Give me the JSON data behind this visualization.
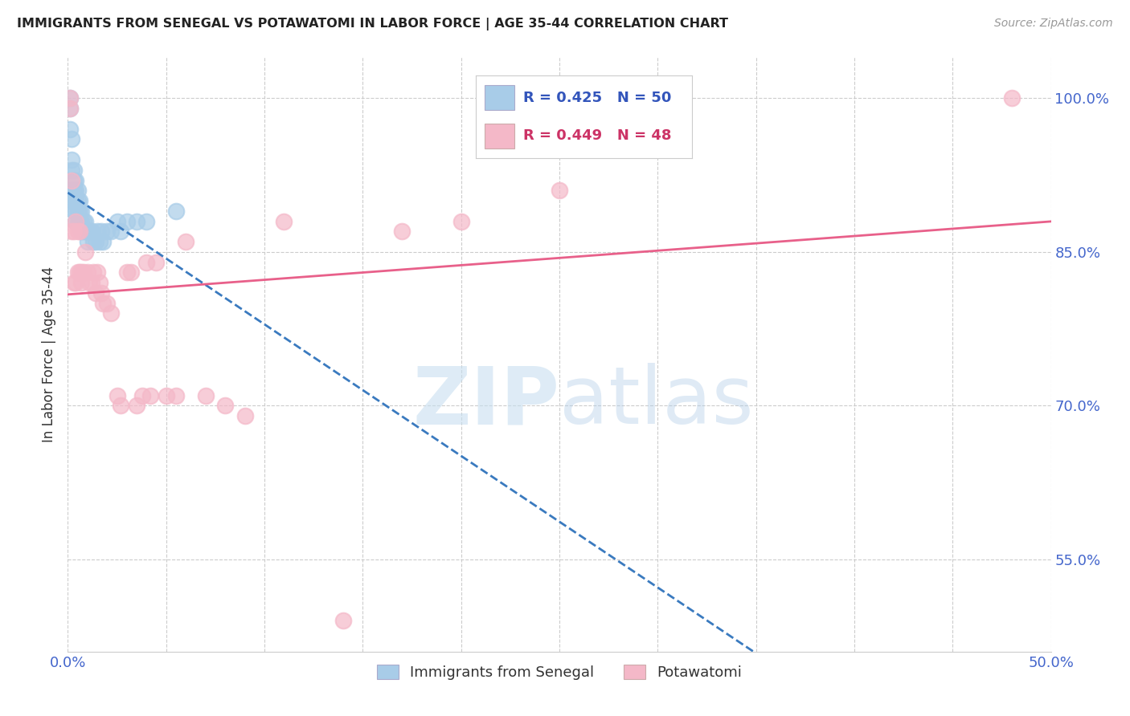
{
  "title": "IMMIGRANTS FROM SENEGAL VS POTAWATOMI IN LABOR FORCE | AGE 35-44 CORRELATION CHART",
  "source": "Source: ZipAtlas.com",
  "ylabel": "In Labor Force | Age 35-44",
  "xlim": [
    0.0,
    0.5
  ],
  "ylim": [
    0.46,
    1.04
  ],
  "yticks_right": [
    0.55,
    0.7,
    0.85,
    1.0
  ],
  "ytick_labels_right": [
    "55.0%",
    "70.0%",
    "85.0%",
    "100.0%"
  ],
  "senegal_R": 0.425,
  "senegal_N": 50,
  "potawatomi_R": 0.449,
  "potawatomi_N": 48,
  "senegal_color": "#a8cce8",
  "potawatomi_color": "#f4b8c8",
  "senegal_line_color": "#3a7abf",
  "potawatomi_line_color": "#e8608a",
  "senegal_x": [
    0.001,
    0.001,
    0.001,
    0.002,
    0.002,
    0.002,
    0.002,
    0.002,
    0.003,
    0.003,
    0.003,
    0.003,
    0.003,
    0.004,
    0.004,
    0.004,
    0.004,
    0.004,
    0.005,
    0.005,
    0.005,
    0.005,
    0.006,
    0.006,
    0.006,
    0.007,
    0.007,
    0.007,
    0.008,
    0.008,
    0.009,
    0.009,
    0.01,
    0.01,
    0.011,
    0.012,
    0.013,
    0.014,
    0.015,
    0.016,
    0.017,
    0.018,
    0.02,
    0.022,
    0.025,
    0.027,
    0.03,
    0.035,
    0.04,
    0.055
  ],
  "senegal_y": [
    1.0,
    0.99,
    0.97,
    0.96,
    0.94,
    0.93,
    0.91,
    0.9,
    0.93,
    0.92,
    0.91,
    0.9,
    0.89,
    0.92,
    0.91,
    0.9,
    0.89,
    0.88,
    0.91,
    0.9,
    0.89,
    0.88,
    0.9,
    0.89,
    0.88,
    0.89,
    0.88,
    0.87,
    0.88,
    0.87,
    0.88,
    0.87,
    0.87,
    0.86,
    0.87,
    0.87,
    0.86,
    0.86,
    0.87,
    0.86,
    0.87,
    0.86,
    0.87,
    0.87,
    0.88,
    0.87,
    0.88,
    0.88,
    0.88,
    0.89
  ],
  "potawatomi_x": [
    0.001,
    0.001,
    0.002,
    0.002,
    0.003,
    0.003,
    0.004,
    0.004,
    0.005,
    0.005,
    0.006,
    0.006,
    0.007,
    0.007,
    0.008,
    0.009,
    0.01,
    0.011,
    0.012,
    0.013,
    0.014,
    0.015,
    0.016,
    0.017,
    0.018,
    0.02,
    0.022,
    0.025,
    0.027,
    0.03,
    0.032,
    0.035,
    0.038,
    0.04,
    0.042,
    0.045,
    0.05,
    0.055,
    0.06,
    0.07,
    0.08,
    0.09,
    0.11,
    0.14,
    0.17,
    0.2,
    0.25,
    0.48
  ],
  "potawatomi_y": [
    1.0,
    0.99,
    0.92,
    0.87,
    0.87,
    0.82,
    0.82,
    0.88,
    0.83,
    0.87,
    0.83,
    0.87,
    0.83,
    0.82,
    0.83,
    0.85,
    0.83,
    0.82,
    0.82,
    0.83,
    0.81,
    0.83,
    0.82,
    0.81,
    0.8,
    0.8,
    0.79,
    0.71,
    0.7,
    0.83,
    0.83,
    0.7,
    0.71,
    0.84,
    0.71,
    0.84,
    0.71,
    0.71,
    0.86,
    0.71,
    0.7,
    0.69,
    0.88,
    0.49,
    0.87,
    0.88,
    0.91,
    1.0
  ],
  "background_color": "#ffffff",
  "grid_color": "#cccccc"
}
